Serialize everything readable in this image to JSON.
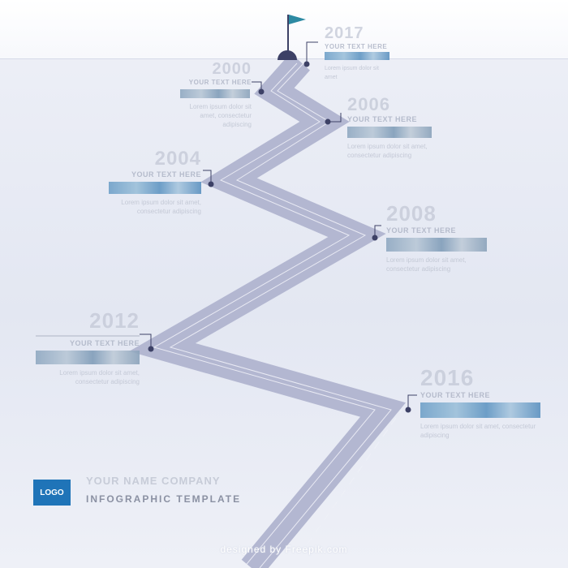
{
  "milestones": [
    {
      "id": "m1",
      "year": "2017",
      "subtitle": "YOUR TEXT HERE",
      "desc": "Lorem ipsum dolor sit amet",
      "side": "right"
    },
    {
      "id": "m2",
      "year": "2000",
      "subtitle": "YOUR TEXT HERE",
      "desc": "Lorem ipsum dolor sit amet, consectetur adipiscing",
      "side": "left"
    },
    {
      "id": "m3",
      "year": "2006",
      "subtitle": "YOUR TEXT HERE",
      "desc": "Lorem ipsum dolor sit amet, consectetur adipiscing",
      "side": "right"
    },
    {
      "id": "m4",
      "year": "2004",
      "subtitle": "YOUR TEXT HERE",
      "desc": "Lorem ipsum dolor sit amet, consectetur adipiscing",
      "side": "left"
    },
    {
      "id": "m5",
      "year": "2008",
      "subtitle": "YOUR TEXT HERE",
      "desc": "Lorem ipsum dolor sit amet, consectetur adipiscing",
      "side": "right"
    },
    {
      "id": "m6",
      "year": "2012",
      "subtitle": "YOUR TEXT HERE",
      "desc": "Lorem ipsum dolor sit amet, consectetur adipiscing",
      "side": "left"
    },
    {
      "id": "m7",
      "year": "2016",
      "subtitle": "YOUR TEXT HERE",
      "desc": "Lorem ipsum dolor sit amet, consectetur adipiscing",
      "side": "right"
    }
  ],
  "brand": {
    "logo": "LOGO",
    "company": "YOUR NAME COMPANY",
    "template_title": "INFOGRAPHIC TEMPLATE"
  },
  "credit": "designed by Freepik.com",
  "colors": {
    "road": "#b3b7d1",
    "road_line": "#eef0f7",
    "flag": "#2d8aa3",
    "marker": "#3d4166",
    "logo_bg": "#1f74b8"
  },
  "icons": [
    "flag-icon",
    "milestone-dot-icon"
  ]
}
